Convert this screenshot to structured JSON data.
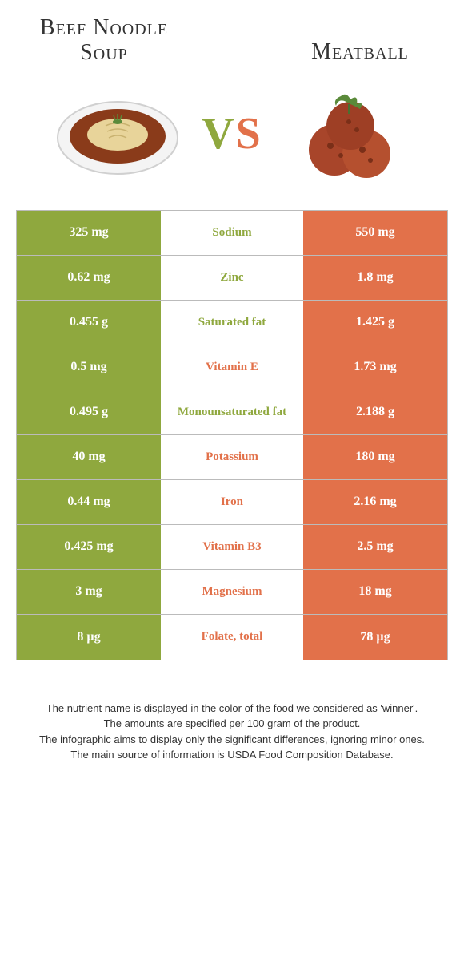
{
  "titles": {
    "left": "Beef Noodle Soup",
    "right": "Meatball",
    "vs": "VS"
  },
  "colors": {
    "left": "#8fa83e",
    "right": "#e2714a",
    "border": "#bbbbbb",
    "vs_left": "#8fa83e",
    "vs_right": "#e2714a"
  },
  "rows": [
    {
      "left": "325 mg",
      "label": "Sodium",
      "right": "550 mg",
      "winner": "left"
    },
    {
      "left": "0.62 mg",
      "label": "Zinc",
      "right": "1.8 mg",
      "winner": "left"
    },
    {
      "left": "0.455 g",
      "label": "Saturated fat",
      "right": "1.425 g",
      "winner": "left"
    },
    {
      "left": "0.5 mg",
      "label": "Vitamin E",
      "right": "1.73 mg",
      "winner": "right"
    },
    {
      "left": "0.495 g",
      "label": "Monounsaturated fat",
      "right": "2.188 g",
      "winner": "left"
    },
    {
      "left": "40 mg",
      "label": "Potassium",
      "right": "180 mg",
      "winner": "right"
    },
    {
      "left": "0.44 mg",
      "label": "Iron",
      "right": "2.16 mg",
      "winner": "right"
    },
    {
      "left": "0.425 mg",
      "label": "Vitamin B3",
      "right": "2.5 mg",
      "winner": "right"
    },
    {
      "left": "3 mg",
      "label": "Magnesium",
      "right": "18 mg",
      "winner": "right"
    },
    {
      "left": "8 µg",
      "label": "Folate, total",
      "right": "78 µg",
      "winner": "right"
    }
  ],
  "footer": {
    "line1": "The nutrient name is displayed in the color of the food we considered as 'winner'.",
    "line2": "The amounts are specified per 100 gram of the product.",
    "line3": "The infographic aims to display only the significant differences, ignoring minor ones.",
    "line4": "The main source of information is USDA Food Composition Database."
  }
}
